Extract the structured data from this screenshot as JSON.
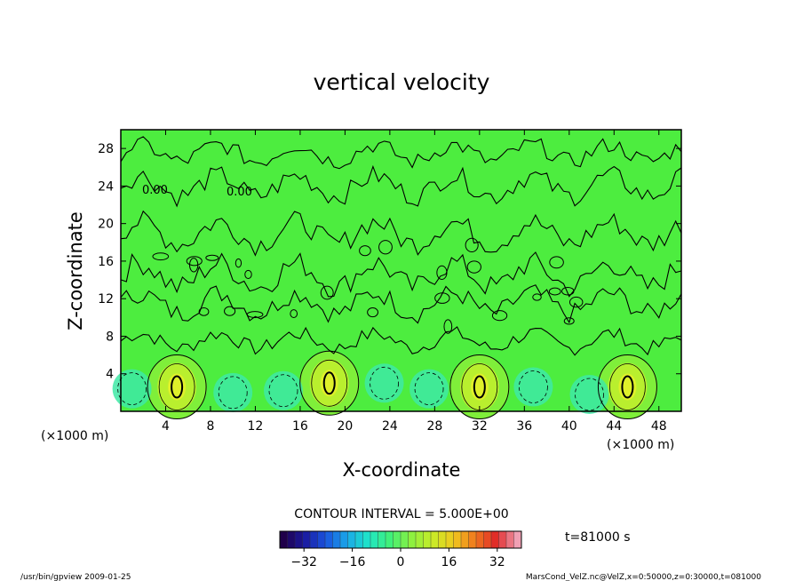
{
  "chart_data": {
    "type": "heatmap",
    "title": "vertical velocity",
    "xlabel": "X-coordinate",
    "ylabel": "Z-coordinate",
    "x_unit_label": "(×1000 m)",
    "y_unit_label": "(×1000 m)",
    "xlim": [
      0,
      50
    ],
    "ylim": [
      0,
      30
    ],
    "x_ticks": [
      4,
      8,
      12,
      16,
      20,
      24,
      28,
      32,
      36,
      40,
      44,
      48
    ],
    "y_ticks": [
      4,
      8,
      12,
      16,
      20,
      24,
      28
    ],
    "contour_interval_label": "CONTOUR INTERVAL = 5.000E+00",
    "zero_contour_labels": [
      "0.00",
      "0.00"
    ],
    "time_label": "t=81000 s",
    "colorbar": {
      "range": [
        -40,
        40
      ],
      "ticks": [
        -32,
        -16,
        0,
        16,
        32
      ],
      "colors": [
        "#20004a",
        "#1a1aa0",
        "#1a55e0",
        "#1aa8e8",
        "#1ee6c8",
        "#40f078",
        "#8cf040",
        "#c8ec28",
        "#f0c81e",
        "#f0781e",
        "#e02828",
        "#f0a0b4"
      ]
    },
    "field_color": "#4ded3f",
    "updraft_cores": [
      {
        "x": 5.0,
        "z": 2.6,
        "value": 15
      },
      {
        "x": 18.6,
        "z": 3.0,
        "value": 15
      },
      {
        "x": 32.0,
        "z": 2.6,
        "value": 15
      },
      {
        "x": 45.2,
        "z": 2.6,
        "value": 15
      }
    ],
    "downdraft_cores": [
      {
        "x": 1.0,
        "z": 2.4,
        "value": -5
      },
      {
        "x": 10.0,
        "z": 2.0,
        "value": -5
      },
      {
        "x": 14.5,
        "z": 2.2,
        "value": -5
      },
      {
        "x": 23.5,
        "z": 3.0,
        "value": -5
      },
      {
        "x": 27.5,
        "z": 2.4,
        "value": -5
      },
      {
        "x": 36.8,
        "z": 2.6,
        "value": -5
      },
      {
        "x": 41.8,
        "z": 1.8,
        "value": -5
      }
    ]
  },
  "footer": {
    "left": "/usr/bin/gpview   2009-01-25",
    "right": "MarsCond_VelZ.nc@VelZ,x=0:50000,z=0:30000,t=081000"
  }
}
